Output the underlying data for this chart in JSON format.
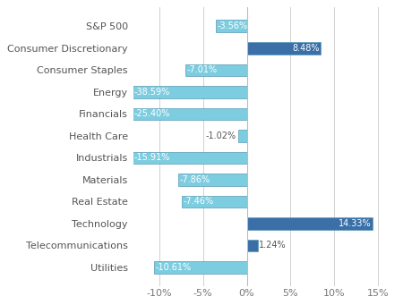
{
  "categories": [
    "Utilities",
    "Telecommunications",
    "Technology",
    "Real Estate",
    "Materials",
    "Industrials",
    "Health Care",
    "Financials",
    "Energy",
    "Consumer Staples",
    "Consumer Discretionary",
    "S&P 500"
  ],
  "values": [
    -10.61,
    1.24,
    14.33,
    -7.46,
    -7.86,
    -15.91,
    -1.02,
    -25.4,
    -38.59,
    -7.01,
    8.48,
    -3.56
  ],
  "bar_colors": [
    "#7dcde0",
    "#3a6fa8",
    "#3a6fa8",
    "#7dcde0",
    "#7dcde0",
    "#7dcde0",
    "#7dcde0",
    "#7dcde0",
    "#7dcde0",
    "#7dcde0",
    "#3a6fa8",
    "#7dcde0"
  ],
  "xlim": [
    -13,
    17
  ],
  "xticks": [
    -10,
    -5,
    0,
    5,
    10,
    15
  ],
  "xticklabels": [
    "-10%",
    "-5%",
    "0%",
    "5%",
    "10%",
    "15%"
  ],
  "background_color": "#ffffff",
  "grid_color": "#d0d0d0",
  "label_fontsize": 8,
  "tick_fontsize": 8,
  "bar_label_fontsize": 7
}
